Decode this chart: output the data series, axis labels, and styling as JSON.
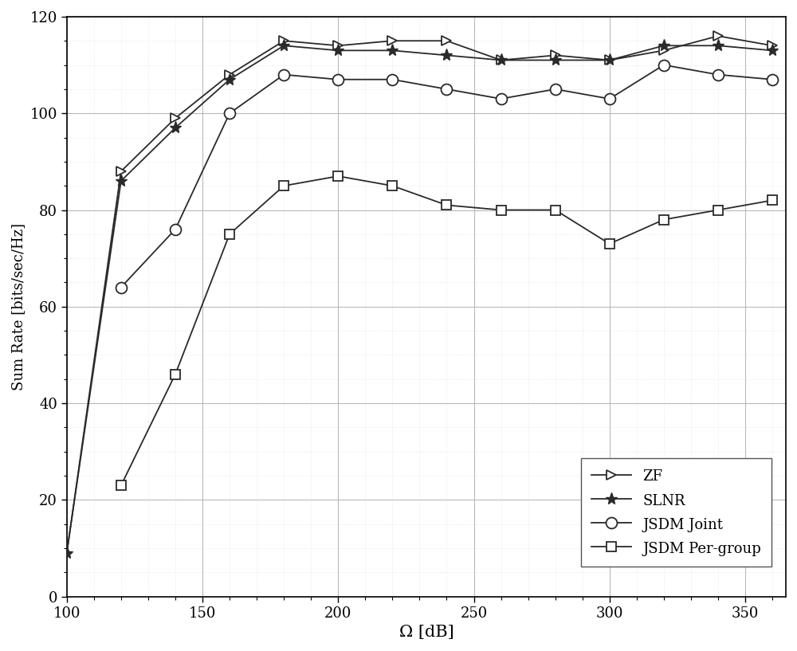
{
  "x": [
    100,
    120,
    140,
    160,
    180,
    200,
    220,
    240,
    260,
    280,
    300,
    320,
    340,
    360
  ],
  "ZF": [
    9,
    88,
    99,
    108,
    115,
    114,
    115,
    115,
    111,
    112,
    111,
    113,
    116,
    114
  ],
  "SLNR": [
    9,
    86,
    97,
    107,
    114,
    113,
    113,
    112,
    111,
    111,
    111,
    114,
    114,
    113
  ],
  "JSDM_Joint": [
    null,
    64,
    76,
    100,
    108,
    107,
    107,
    105,
    103,
    105,
    103,
    110,
    108,
    107
  ],
  "JSDM_Pergroup": [
    null,
    23,
    46,
    75,
    85,
    87,
    85,
    81,
    80,
    80,
    73,
    78,
    80,
    82
  ],
  "xlim": [
    100,
    365
  ],
  "ylim": [
    0,
    120
  ],
  "xticks": [
    100,
    150,
    200,
    250,
    300,
    350
  ],
  "yticks": [
    0,
    20,
    40,
    60,
    80,
    100,
    120
  ],
  "xlabel": "Ω [dB]",
  "ylabel": "Sum Rate [bits/sec/Hz]",
  "grid_color": "#b8b8b8",
  "grid_minor_color": "#d8d8d8",
  "line_color": "#2a2a2a",
  "legend_labels": [
    "ZF",
    "SLNR",
    "JSDM Joint",
    "JSDM Per-group"
  ],
  "bg_color": "#ffffff",
  "font_family": "DejaVu Serif"
}
